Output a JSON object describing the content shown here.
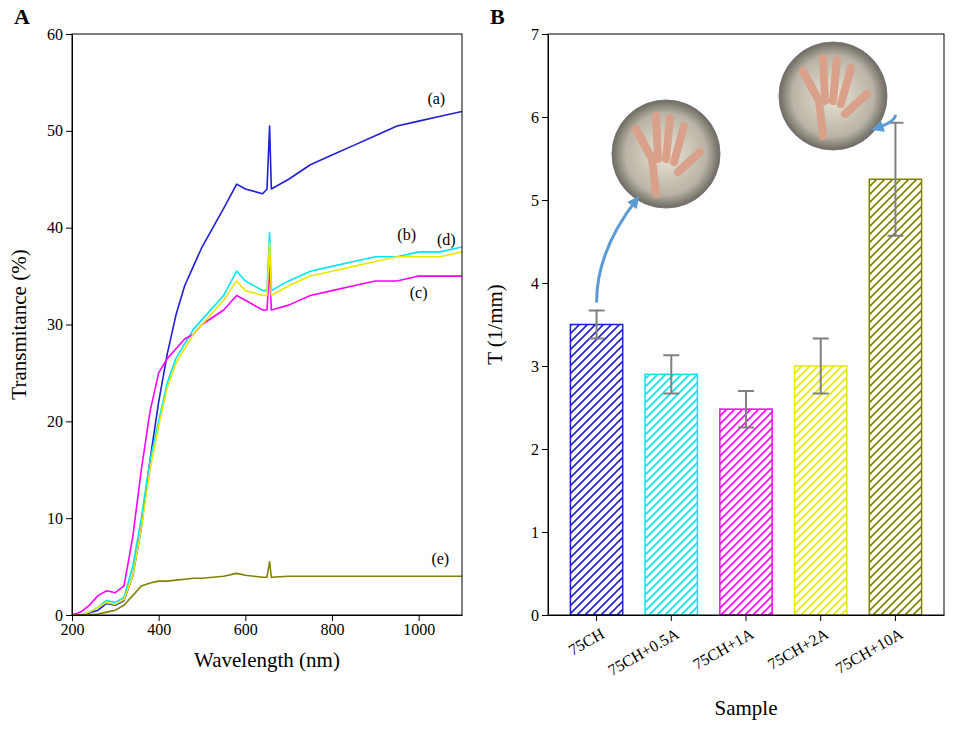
{
  "chart_data": [
    {
      "type": "line",
      "panel": "A",
      "x_label": "Wavelength (nm)",
      "y_label": "Transmitance (%)",
      "x": [
        200,
        220,
        240,
        260,
        280,
        300,
        320,
        340,
        360,
        380,
        400,
        420,
        440,
        460,
        480,
        500,
        550,
        580,
        600,
        640,
        650,
        656,
        660,
        700,
        750,
        800,
        850,
        900,
        950,
        1000,
        1050,
        1100
      ],
      "xlim": [
        200,
        1100
      ],
      "xticks": [
        200,
        400,
        600,
        800,
        1000
      ],
      "ylim": [
        0,
        60
      ],
      "yticks": [
        0,
        10,
        20,
        30,
        40,
        50,
        60
      ],
      "series": [
        {
          "name": "(a)",
          "color": "#1f1fd6",
          "values": [
            0,
            0,
            0.2,
            0.5,
            1.2,
            1.0,
            1.5,
            4,
            9,
            16,
            22,
            27,
            31,
            34,
            36,
            38,
            42,
            44.5,
            44,
            43.5,
            44,
            50.5,
            44,
            45,
            46.5,
            47.5,
            48.5,
            49.5,
            50.5,
            51,
            51.5,
            52
          ]
        },
        {
          "name": "(b)",
          "color": "#00e5ee",
          "values": [
            0,
            0,
            0.3,
            0.8,
            1.5,
            1.3,
            1.8,
            5,
            10,
            16,
            20,
            24,
            26.5,
            28,
            29.5,
            30.5,
            33,
            35.5,
            34.5,
            33.5,
            33.5,
            39.5,
            33.5,
            34.5,
            35.5,
            36,
            36.5,
            37,
            37,
            37.5,
            37.5,
            38
          ]
        },
        {
          "name": "(c)",
          "color": "#ff00ff",
          "values": [
            0,
            0.3,
            1.0,
            2.0,
            2.5,
            2.3,
            3,
            8,
            15,
            21,
            25,
            26.5,
            27.5,
            28.5,
            29,
            30,
            31.5,
            33,
            32.5,
            31.5,
            31.5,
            36,
            31.5,
            32,
            33,
            33.5,
            34,
            34.5,
            34.5,
            35,
            35,
            35
          ]
        },
        {
          "name": "(d)",
          "color": "#e8e800",
          "values": [
            0,
            0,
            0.3,
            0.8,
            1.3,
            1.1,
            1.6,
            4,
            9,
            15,
            19.5,
            23.5,
            26,
            27.5,
            29,
            30,
            32.5,
            34.5,
            33.5,
            33,
            33,
            38.5,
            33,
            34,
            35,
            35.5,
            36,
            36.5,
            37,
            37,
            37,
            37.5
          ]
        },
        {
          "name": "(e)",
          "color": "#808000",
          "values": [
            0,
            0,
            0,
            0.1,
            0.3,
            0.5,
            1,
            2,
            3,
            3.3,
            3.5,
            3.5,
            3.6,
            3.7,
            3.8,
            3.8,
            4,
            4.3,
            4.1,
            3.9,
            3.9,
            5.5,
            3.9,
            4,
            4,
            4,
            4,
            4,
            4,
            4,
            4,
            4
          ]
        }
      ]
    },
    {
      "type": "bar",
      "panel": "B",
      "x_label": "Sample",
      "y_label": "T (1/mm)",
      "categories": [
        "75CH",
        "75CH+0.5A",
        "75CH+1A",
        "75CH+2A",
        "75CH+10A"
      ],
      "values": [
        3.5,
        2.9,
        2.48,
        3.0,
        5.25
      ],
      "errors": [
        0.17,
        0.23,
        0.22,
        0.33,
        0.68
      ],
      "colors": [
        "#1f1fd6",
        "#00e5ee",
        "#ff00ff",
        "#e8e800",
        "#808000"
      ],
      "ylim": [
        0,
        7
      ],
      "yticks": [
        0,
        1,
        2,
        3,
        4,
        5,
        6,
        7
      ]
    }
  ]
}
